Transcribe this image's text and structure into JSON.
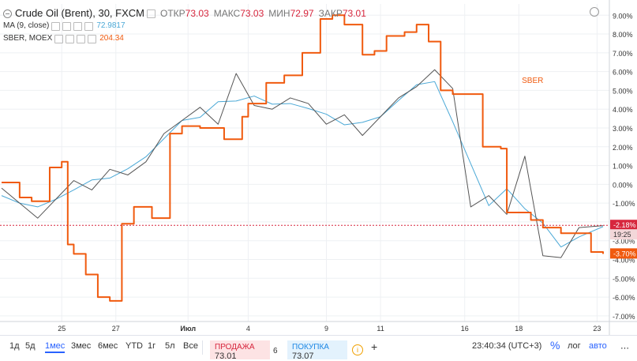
{
  "legend": {
    "symbol": "Crude Oil (Brent), 30, FXCM",
    "open_label": "ОТКР",
    "open": "73.03",
    "high_label": "МАКС",
    "high": "73.03",
    "low_label": "МИН",
    "low": "72.97",
    "close_label": "ЗАКР",
    "close": "73.01",
    "ma_label": "MA (9, close)",
    "ma_value": "72.9817",
    "sber_label": "SBER, MOEX",
    "sber_value": "204.34"
  },
  "series_label": "SBER",
  "price_badges": {
    "brent_pct": "-2.18%",
    "countdown": "19:25",
    "sber_pct": "-3.70%"
  },
  "colors": {
    "brent": "#555555",
    "ma": "#4aa8d6",
    "sber": "#f05a0e",
    "red": "#d7263d",
    "grid": "#eef0f3"
  },
  "chart_data": {
    "type": "line",
    "y_axis": {
      "unit": "%",
      "ticks": [
        "9.00%",
        "8.00%",
        "7.00%",
        "6.00%",
        "5.00%",
        "4.00%",
        "3.00%",
        "2.00%",
        "1.00%",
        "0.00%",
        "-1.00%",
        "-2.00%",
        "-3.00%",
        "-4.00%",
        "-5.00%",
        "-6.00%",
        "-7.00%"
      ],
      "ylim": [
        -7.3,
        9.6
      ]
    },
    "x_axis": {
      "ticks": [
        "25",
        "27",
        "Июл",
        "4",
        "9",
        "11",
        "16",
        "18",
        "23"
      ]
    },
    "series": [
      {
        "name": "Crude Oil (Brent)",
        "x": [
          0,
          3,
          6,
          9,
          12,
          15,
          18,
          21,
          24,
          27,
          30,
          33,
          36,
          39,
          42,
          45,
          48,
          51,
          54,
          57,
          60,
          63,
          66,
          69,
          72,
          75,
          78,
          81,
          84,
          87,
          90,
          93,
          96,
          100
        ],
        "values": [
          -0.2,
          -1.0,
          -1.8,
          -0.8,
          0.2,
          -0.3,
          0.8,
          0.5,
          1.2,
          2.7,
          3.4,
          4.1,
          3.2,
          5.9,
          4.2,
          4.0,
          4.6,
          4.3,
          3.2,
          3.7,
          2.6,
          3.6,
          4.6,
          5.2,
          6.1,
          5.1,
          -1.2,
          -0.6,
          -1.6,
          1.5,
          -3.8,
          -3.9,
          -2.3,
          -2.2
        ]
      },
      {
        "name": "SBER",
        "x": [
          0,
          3,
          5,
          8,
          10,
          11,
          12,
          14,
          16,
          18,
          20,
          22,
          25,
          28,
          30,
          33,
          37,
          40,
          41,
          44,
          47,
          50,
          53,
          55,
          57,
          60,
          62,
          64,
          67,
          69,
          71,
          73,
          75,
          80,
          83,
          84,
          88,
          90,
          93,
          98,
          100
        ],
        "values": [
          0.1,
          -0.7,
          -0.9,
          0.9,
          1.2,
          -3.2,
          -3.7,
          -4.8,
          -6.0,
          -6.2,
          -2.1,
          -1.2,
          -1.8,
          2.7,
          3.1,
          3.0,
          2.4,
          3.6,
          4.3,
          5.4,
          5.8,
          7.0,
          8.8,
          9.0,
          8.5,
          6.9,
          7.1,
          7.9,
          8.1,
          8.5,
          7.6,
          5.0,
          4.8,
          2.0,
          1.9,
          -1.5,
          -1.9,
          -2.3,
          -2.6,
          -3.6,
          -3.7
        ]
      }
    ]
  },
  "bottom": {
    "timeframes": [
      "1д",
      "5д",
      "1мес",
      "3мес",
      "6мес",
      "YTD",
      "1г",
      "5л",
      "Все"
    ],
    "active_tf": 2,
    "sell_label": "ПРОДАЖА",
    "sell_price": "73.01",
    "spread": "6",
    "buy_label": "ПОКУПКА",
    "buy_price": "73.07",
    "info_icon": "i",
    "plus_icon": "+",
    "time": "23:40:34 (UTC+3)",
    "pct_label": "%",
    "log_label": "лог",
    "auto_label": "авто",
    "more_icon": "⋯"
  }
}
